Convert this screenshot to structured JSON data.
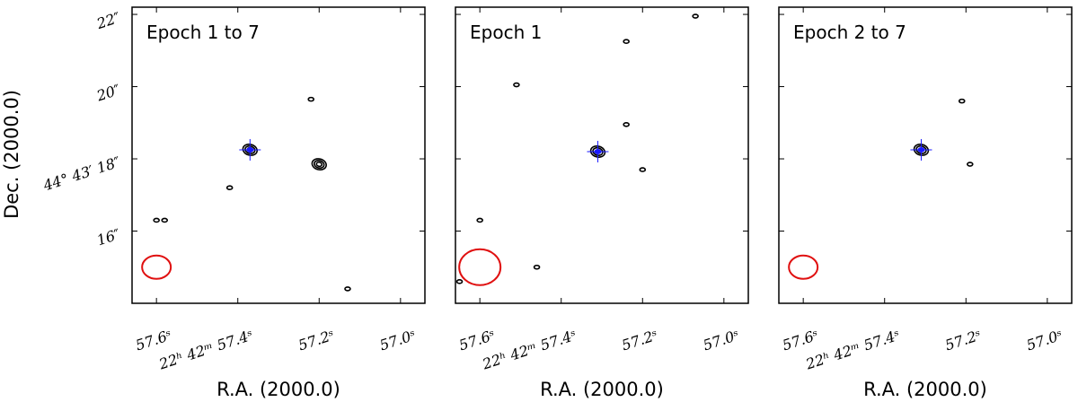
{
  "chart_data": [
    {
      "type": "contour",
      "title": "Epoch 1 to 7",
      "xlabel": "R.A. (2000.0)",
      "ylabel": "Dec. (2000.0)",
      "x_ticks": [
        "57.6ˢ",
        "22ʰ 42ᵐ 57.4ˢ",
        "57.2ˢ",
        "57.0ˢ"
      ],
      "y_ticks": [
        "22″",
        "20″",
        "44° 43′ 18″",
        "16″"
      ],
      "ra_seconds_range": [
        57.66,
        56.94
      ],
      "dec_arcsec_range": [
        14.0,
        22.2
      ],
      "sources": [
        {
          "ra": 57.37,
          "dec": 18.25,
          "contours": 3,
          "marker": true
        },
        {
          "ra": 57.2,
          "dec": 17.85,
          "contours": 3
        },
        {
          "ra": 57.22,
          "dec": 19.65,
          "contours": 1
        },
        {
          "ra": 57.42,
          "dec": 17.2,
          "contours": 1
        },
        {
          "ra": 57.13,
          "dec": 14.4,
          "contours": 1
        },
        {
          "ra": 57.6,
          "dec": 16.3,
          "contours": 1
        },
        {
          "ra": 57.58,
          "dec": 16.3,
          "contours": 1
        }
      ],
      "beam": {
        "ra": 57.6,
        "dec": 15.0,
        "size": "small"
      }
    },
    {
      "type": "contour",
      "title": "Epoch 1",
      "xlabel": "R.A. (2000.0)",
      "ylabel": "",
      "x_ticks": [
        "57.6ˢ",
        "22ʰ 42ᵐ 57.4ˢ",
        "57.2ˢ",
        "57.0ˢ"
      ],
      "y_ticks": [],
      "ra_seconds_range": [
        57.66,
        56.94
      ],
      "dec_arcsec_range": [
        14.0,
        22.2
      ],
      "sources": [
        {
          "ra": 57.31,
          "dec": 18.2,
          "contours": 2,
          "marker": true
        },
        {
          "ra": 57.24,
          "dec": 18.95,
          "contours": 1
        },
        {
          "ra": 57.2,
          "dec": 17.7,
          "contours": 1
        },
        {
          "ra": 57.07,
          "dec": 21.95,
          "contours": 1
        },
        {
          "ra": 57.24,
          "dec": 21.25,
          "contours": 1
        },
        {
          "ra": 57.51,
          "dec": 20.05,
          "contours": 1
        },
        {
          "ra": 57.6,
          "dec": 16.3,
          "contours": 1
        },
        {
          "ra": 57.46,
          "dec": 15.0,
          "contours": 1
        },
        {
          "ra": 57.65,
          "dec": 14.6,
          "contours": 1
        }
      ],
      "beam": {
        "ra": 57.6,
        "dec": 15.0,
        "size": "large"
      }
    },
    {
      "type": "contour",
      "title": "Epoch 2 to 7",
      "xlabel": "R.A. (2000.0)",
      "ylabel": "",
      "x_ticks": [
        "57.6ˢ",
        "22ʰ 42ᵐ 57.4ˢ",
        "57.2ˢ",
        "57.0ˢ"
      ],
      "y_ticks": [],
      "ra_seconds_range": [
        57.66,
        56.94
      ],
      "dec_arcsec_range": [
        14.0,
        22.2
      ],
      "sources": [
        {
          "ra": 57.31,
          "dec": 18.25,
          "contours": 2,
          "marker": true
        },
        {
          "ra": 57.21,
          "dec": 19.6,
          "contours": 1
        },
        {
          "ra": 57.19,
          "dec": 17.85,
          "contours": 1
        }
      ],
      "beam": {
        "ra": 57.6,
        "dec": 15.0,
        "size": "small"
      }
    }
  ],
  "colors": {
    "beam": "#e01010",
    "marker": "#1a1aff",
    "contour": "#000000"
  }
}
